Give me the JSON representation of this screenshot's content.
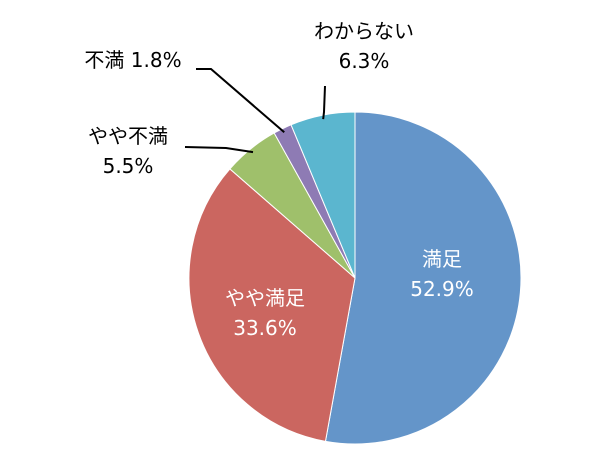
{
  "chart_data": {
    "type": "pie",
    "start": "top",
    "direction": "clockwise",
    "slices": [
      {
        "label": "満足",
        "value": 52.9,
        "display": "52.9%",
        "color": "#6495C9"
      },
      {
        "label": "やや満足",
        "value": 33.6,
        "display": "33.6%",
        "color": "#CB6660"
      },
      {
        "label": "やや不満",
        "value": 5.5,
        "display": "5.5%",
        "color": "#9FC06B"
      },
      {
        "label": "不満",
        "value": 1.8,
        "display": "1.8%",
        "color": "#8E7BB4"
      },
      {
        "label": "わからない",
        "value": 6.3,
        "display": "6.3%",
        "color": "#5BB6CF"
      }
    ],
    "legend": "none"
  }
}
